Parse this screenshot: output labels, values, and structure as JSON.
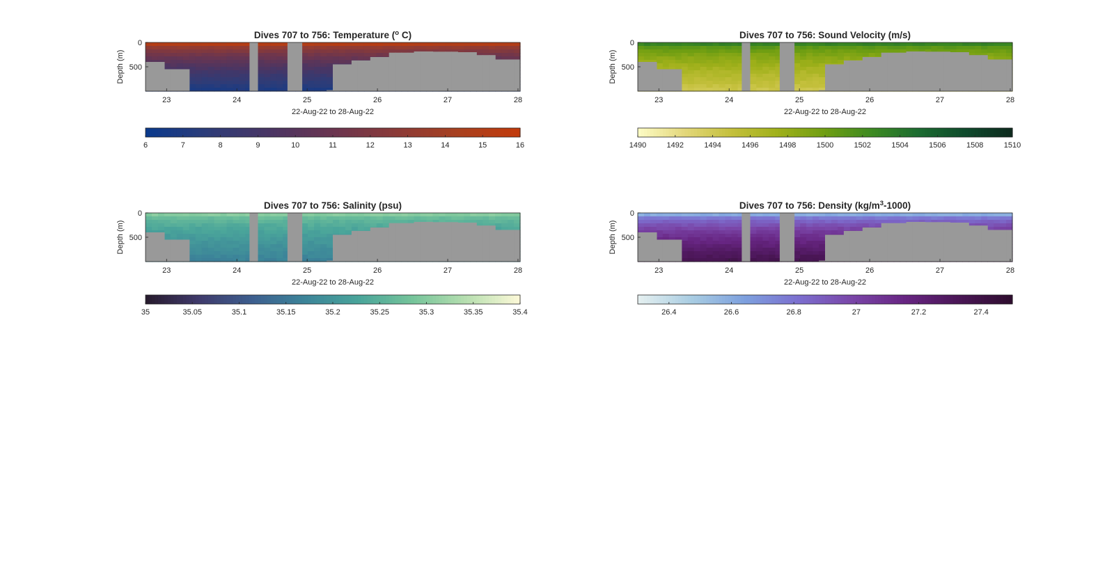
{
  "figure": {
    "background": "#ffffff",
    "missing_color": "#999999"
  },
  "chart_data": [
    {
      "type": "heatmap",
      "title": "Dives 707 to 756: Temperature (°C)",
      "title_parts": {
        "before": "Dives 707 to 756: Temperature (",
        "sup": "o",
        "after": " C)"
      },
      "xlabel": "22-Aug-22 to 28-Aug-22",
      "ylabel": "Depth (m)",
      "x_ticks": [
        23,
        24,
        25,
        26,
        27,
        28
      ],
      "y_ticks": [
        0,
        500
      ],
      "xlim": [
        22.7,
        28.03
      ],
      "ylim": [
        1000,
        0
      ],
      "y_reversed": true,
      "colormap": [
        "#0a3a8c",
        "#2d3c78",
        "#4a3563",
        "#6a3550",
        "#8a3a38",
        "#a8401f",
        "#c23a0a"
      ],
      "surface_value": 15,
      "deep_value": 7,
      "colorbar": {
        "clim": [
          6,
          16
        ],
        "ticks": [
          6,
          7,
          8,
          9,
          10,
          11,
          12,
          13,
          14,
          15,
          16
        ]
      },
      "gaps": [
        [
          24.18,
          24.3
        ],
        [
          24.72,
          24.93
        ]
      ],
      "bottom_depth": [
        [
          22.7,
          400
        ],
        [
          23.0,
          550
        ],
        [
          23.3,
          1000
        ],
        [
          25.3,
          980
        ],
        [
          25.4,
          450
        ],
        [
          25.6,
          370
        ],
        [
          25.9,
          300
        ],
        [
          26.2,
          210
        ],
        [
          26.5,
          185
        ],
        [
          26.8,
          190
        ],
        [
          27.1,
          200
        ],
        [
          27.4,
          260
        ],
        [
          27.7,
          350
        ],
        [
          28.0,
          520
        ]
      ]
    },
    {
      "type": "heatmap",
      "title": "Dives 707 to 756: Sound Velocity (m/s)",
      "xlabel": "22-Aug-22 to 28-Aug-22",
      "ylabel": "Depth (m)",
      "x_ticks": [
        23,
        24,
        25,
        26,
        27,
        28
      ],
      "y_ticks": [
        0,
        500
      ],
      "xlim": [
        22.7,
        28.03
      ],
      "ylim": [
        1000,
        0
      ],
      "y_reversed": true,
      "colormap": [
        "#fdfcc6",
        "#e3d77a",
        "#c4c03c",
        "#9fb01a",
        "#6f9e12",
        "#3d8a22",
        "#1b6b30",
        "#0f4a2c",
        "#0e2a1e"
      ],
      "surface_value": 1503,
      "deep_value": 1494.5,
      "colorbar": {
        "clim": [
          1490,
          1510
        ],
        "ticks": [
          1490,
          1492,
          1494,
          1496,
          1498,
          1500,
          1502,
          1504,
          1506,
          1508,
          1510
        ]
      },
      "gaps": [
        [
          24.18,
          24.3
        ],
        [
          24.72,
          24.93
        ]
      ],
      "bottom_depth": [
        [
          22.7,
          400
        ],
        [
          23.0,
          550
        ],
        [
          23.3,
          1000
        ],
        [
          25.3,
          980
        ],
        [
          25.4,
          450
        ],
        [
          25.6,
          370
        ],
        [
          25.9,
          300
        ],
        [
          26.2,
          210
        ],
        [
          26.5,
          185
        ],
        [
          26.8,
          190
        ],
        [
          27.1,
          200
        ],
        [
          27.4,
          260
        ],
        [
          27.7,
          350
        ],
        [
          28.0,
          520
        ]
      ]
    },
    {
      "type": "heatmap",
      "title": "Dives 707 to 756: Salinity (psu)",
      "xlabel": "22-Aug-22 to 28-Aug-22",
      "ylabel": "Depth (m)",
      "x_ticks": [
        23,
        24,
        25,
        26,
        27,
        28
      ],
      "y_ticks": [
        0,
        500
      ],
      "xlim": [
        22.7,
        28.03
      ],
      "ylim": [
        1000,
        0
      ],
      "y_reversed": true,
      "colormap": [
        "#271a2c",
        "#3f3a6b",
        "#3d5f8f",
        "#3c8599",
        "#4aa59a",
        "#76c49a",
        "#b7dfb0",
        "#fdf9d8"
      ],
      "surface_value": 35.3,
      "deep_value": 35.17,
      "colorbar": {
        "clim": [
          35,
          35.4
        ],
        "ticks": [
          35,
          35.05,
          35.1,
          35.15,
          35.2,
          35.25,
          35.3,
          35.35,
          35.4
        ]
      },
      "gaps": [
        [
          24.18,
          24.3
        ],
        [
          24.72,
          24.93
        ]
      ],
      "bottom_depth": [
        [
          22.7,
          400
        ],
        [
          23.0,
          550
        ],
        [
          23.3,
          1000
        ],
        [
          25.3,
          980
        ],
        [
          25.4,
          450
        ],
        [
          25.6,
          370
        ],
        [
          25.9,
          300
        ],
        [
          26.2,
          210
        ],
        [
          26.5,
          185
        ],
        [
          26.8,
          190
        ],
        [
          27.1,
          200
        ],
        [
          27.4,
          260
        ],
        [
          27.7,
          350
        ],
        [
          28.0,
          520
        ]
      ]
    },
    {
      "type": "heatmap",
      "title": "Dives 707 to 756: Density (kg/m3-1000)",
      "title_parts": {
        "before": "Dives 707 to 756: Density (kg/m",
        "sup": "3",
        "after": "-1000)"
      },
      "xlabel": "22-Aug-22 to 28-Aug-22",
      "ylabel": "Depth (m)",
      "x_ticks": [
        23,
        24,
        25,
        26,
        27,
        28
      ],
      "y_ticks": [
        0,
        500
      ],
      "xlim": [
        22.7,
        28.03
      ],
      "ylim": [
        1000,
        0
      ],
      "y_reversed": true,
      "colormap": [
        "#e6f0f0",
        "#a9cde2",
        "#7da0de",
        "#7c6fcf",
        "#7a46a8",
        "#672582",
        "#4a1656",
        "#2e0d2e"
      ],
      "surface_value": 26.6,
      "deep_value": 27.35,
      "colorbar": {
        "clim": [
          26.3,
          27.5
        ],
        "ticks": [
          26.4,
          26.6,
          26.8,
          27,
          27.2,
          27.4
        ]
      },
      "gaps": [
        [
          24.18,
          24.3
        ],
        [
          24.72,
          24.93
        ]
      ],
      "bottom_depth": [
        [
          22.7,
          400
        ],
        [
          23.0,
          550
        ],
        [
          23.3,
          1000
        ],
        [
          25.3,
          980
        ],
        [
          25.4,
          450
        ],
        [
          25.6,
          370
        ],
        [
          25.9,
          300
        ],
        [
          26.2,
          210
        ],
        [
          26.5,
          185
        ],
        [
          26.8,
          190
        ],
        [
          27.1,
          200
        ],
        [
          27.4,
          260
        ],
        [
          27.7,
          350
        ],
        [
          28.0,
          520
        ]
      ]
    }
  ]
}
